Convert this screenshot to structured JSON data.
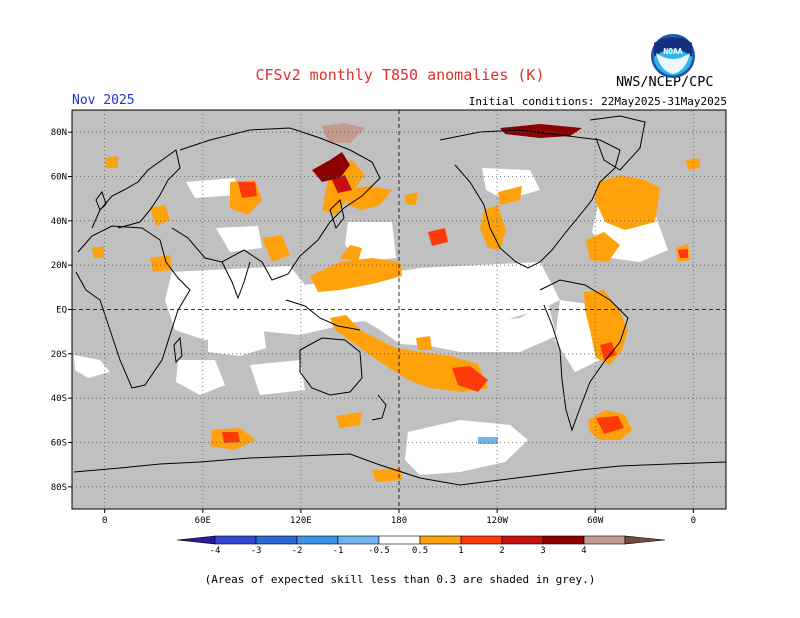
{
  "header": {
    "title": "CFSv2 monthly T850 anomalies (K)",
    "month": "Nov 2025",
    "org": "NWS/NCEP/CPC",
    "initial_conditions": "Initial conditions: 22May2025-31May2025",
    "logo_text": "NOAA"
  },
  "map": {
    "lon_ticks": [
      {
        "lon": 0,
        "label": "0"
      },
      {
        "lon": 60,
        "label": "60E"
      },
      {
        "lon": 120,
        "label": "120E"
      },
      {
        "lon": 180,
        "label": "180"
      },
      {
        "lon": 240,
        "label": "120W"
      },
      {
        "lon": 300,
        "label": "60W"
      },
      {
        "lon": 360,
        "label": "0"
      }
    ],
    "lat_ticks": [
      {
        "lat": 80,
        "label": "80N"
      },
      {
        "lat": 60,
        "label": "60N"
      },
      {
        "lat": 40,
        "label": "40N"
      },
      {
        "lat": 20,
        "label": "20N"
      },
      {
        "lat": 0,
        "label": "EQ"
      },
      {
        "lat": -20,
        "label": "20S"
      },
      {
        "lat": -40,
        "label": "40S"
      },
      {
        "lat": -60,
        "label": "60S"
      },
      {
        "lat": -80,
        "label": "80S"
      }
    ],
    "lon_range": [
      -20,
      380
    ],
    "lat_range": [
      -90,
      90
    ],
    "grid": true,
    "low_skill_color": "#c0c0c0"
  },
  "legend": {
    "labels": [
      "-4",
      "-3",
      "-2",
      "-1",
      "-0.5",
      "0.5",
      "1",
      "2",
      "3",
      "4"
    ],
    "colors": [
      "#2a1a9a",
      "#3348d0",
      "#2a6ad8",
      "#3e92e8",
      "#72b4f2",
      "#ffffff",
      "#ffa10a",
      "#ff3a0a",
      "#c81010",
      "#8e0000",
      "#c49a8e",
      "#7a4a3a"
    ]
  },
  "footer": {
    "caption": "(Areas of expected skill less than 0.3 are shaded in grey.)"
  }
}
